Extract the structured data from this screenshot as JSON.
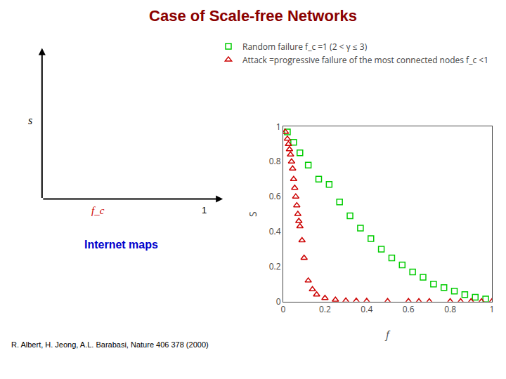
{
  "chart_data": {
    "type": "scatter",
    "title": "Case of Scale-free Networks",
    "title_color": "#8B0000",
    "subtitle": "Internet maps",
    "subtitle_color": "#0000cc",
    "x_label": "f",
    "y_label": "S",
    "xlim": [
      0,
      1
    ],
    "ylim": [
      0,
      1
    ],
    "xticks": [
      0,
      0.2,
      0.4,
      0.6,
      0.8,
      1
    ],
    "yticks": [
      0,
      0.2,
      0.4,
      0.6,
      0.8,
      1
    ],
    "grid": false,
    "legend": "upper right",
    "series": [
      {
        "name": "Random failure f_c =1 (2 < γ ≤ 3)",
        "color": "#00cc00",
        "marker": "square-open",
        "x": [
          0.02,
          0.05,
          0.08,
          0.12,
          0.17,
          0.22,
          0.27,
          0.32,
          0.37,
          0.42,
          0.47,
          0.52,
          0.57,
          0.62,
          0.67,
          0.72,
          0.77,
          0.82,
          0.87,
          0.92,
          0.97
        ],
        "values": [
          0.97,
          0.91,
          0.85,
          0.78,
          0.7,
          0.67,
          0.57,
          0.49,
          0.42,
          0.36,
          0.3,
          0.25,
          0.21,
          0.17,
          0.14,
          0.1,
          0.08,
          0.06,
          0.04,
          0.025,
          0.015
        ]
      },
      {
        "name": "Attack =progressive failure of the most connected nodes f_c <1",
        "color": "#cc0000",
        "marker": "triangle-up-open",
        "x": [
          0.01,
          0.02,
          0.025,
          0.03,
          0.035,
          0.04,
          0.045,
          0.05,
          0.055,
          0.06,
          0.065,
          0.07,
          0.075,
          0.08,
          0.09,
          0.1,
          0.12,
          0.14,
          0.16,
          0.2,
          0.25,
          0.3,
          0.35,
          0.4,
          0.5,
          0.6,
          0.65,
          0.7,
          0.8,
          0.85,
          0.9,
          0.95,
          1.0
        ],
        "values": [
          0.97,
          0.93,
          0.9,
          0.87,
          0.84,
          0.8,
          0.76,
          0.7,
          0.65,
          0.6,
          0.55,
          0.5,
          0.46,
          0.43,
          0.35,
          0.25,
          0.12,
          0.07,
          0.04,
          0.02,
          0.01,
          0.005,
          0.004,
          0.003,
          0.002,
          0.002,
          0.001,
          0.001,
          0.001,
          0.001,
          0.001,
          0.001,
          0.001
        ]
      }
    ],
    "annotations": [
      {
        "text": "s",
        "color": "#000000"
      },
      {
        "text": "f_c",
        "color": "#cc0000"
      },
      {
        "text": "1",
        "color": "#000000"
      },
      {
        "text": "R. Albert, H. Jeong, A.L. Barabasi, Nature 406 378 (2000)",
        "color": "#000000"
      }
    ]
  }
}
